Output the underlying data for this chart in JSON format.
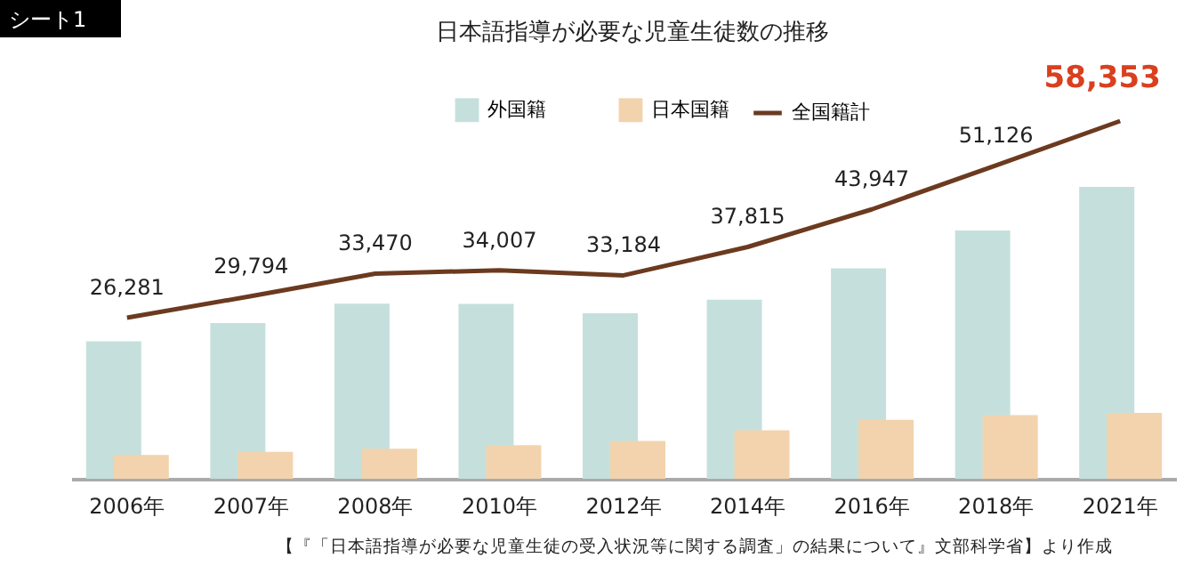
{
  "chart_data": {
    "type": "bar",
    "title": "日本語指導が必要な児童生徒数の推移",
    "categories": [
      "2006年",
      "2007年",
      "2008年",
      "2010年",
      "2012年",
      "2014年",
      "2016年",
      "2018年",
      "2021年"
    ],
    "series": [
      {
        "name": "外国籍",
        "color": "#c5e0dc",
        "values": [
          22413,
          25411,
          28575,
          28511,
          27013,
          29198,
          34335,
          40485,
          47619
        ]
      },
      {
        "name": "日本国籍",
        "color": "#f2d3ad",
        "values": [
          3868,
          4383,
          4895,
          5496,
          6171,
          7897,
          9612,
          10371,
          10734
        ]
      },
      {
        "name": "全国籍計",
        "type": "line",
        "color": "#6b3a1f",
        "values": [
          26281,
          29794,
          33470,
          34007,
          33184,
          37815,
          43947,
          51126,
          58353
        ],
        "value_labels": [
          "26,281",
          "29,794",
          "33,470",
          "34,007",
          "33,184",
          "37,815",
          "43,947",
          "51,126",
          "58,353"
        ]
      }
    ],
    "tick_labels": "x",
    "legend": "top",
    "annotations": [
      "シート1",
      "【『「日本語指導が必要な児童生徒の受入状況等に関する調査」の結果について』文部科学省】より作成"
    ]
  }
}
